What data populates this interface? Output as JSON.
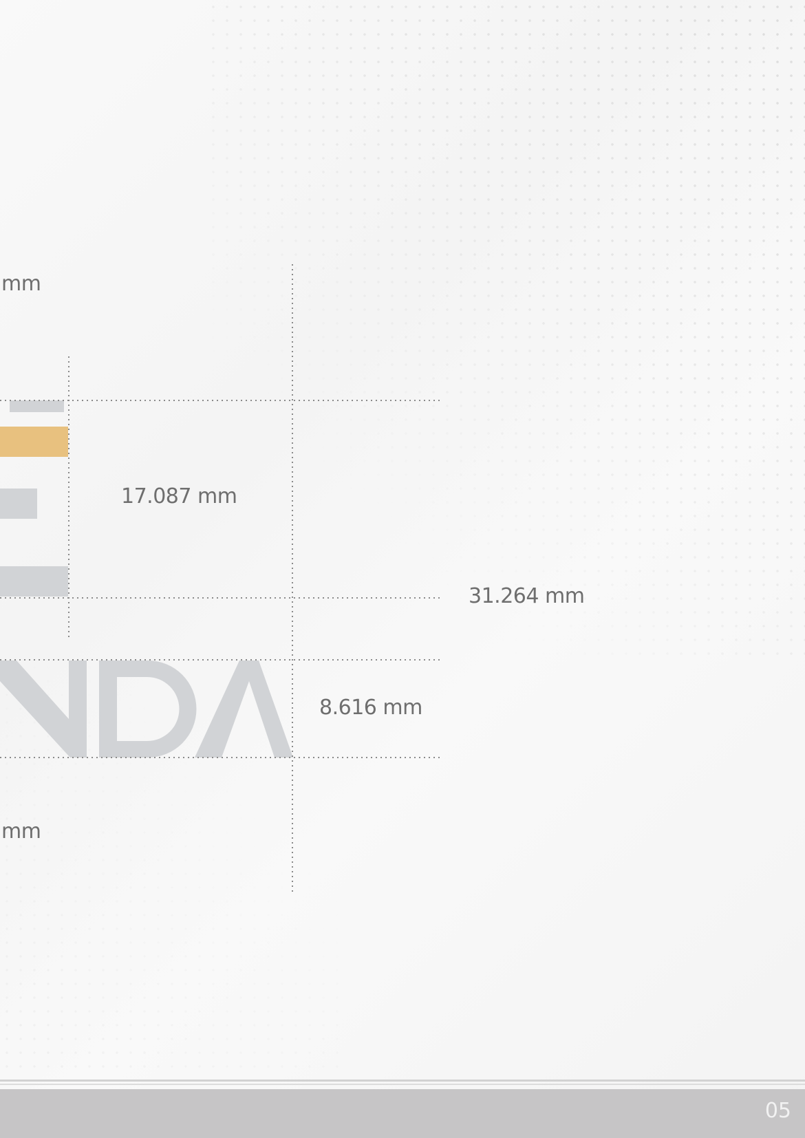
{
  "dimensions": {
    "top_clearance": "mm",
    "symbol_height": "17.087 mm",
    "total_height": "31.264 mm",
    "wordmark_height": "8.616 mm",
    "bottom_clearance": "mm"
  },
  "colors": {
    "accent_bar": "#e8c17f",
    "logo_gray": "#d1d3d6",
    "guide_line": "#8a8a8a",
    "footer": "#c6c5c6"
  },
  "footer": {
    "page_number": "05"
  }
}
